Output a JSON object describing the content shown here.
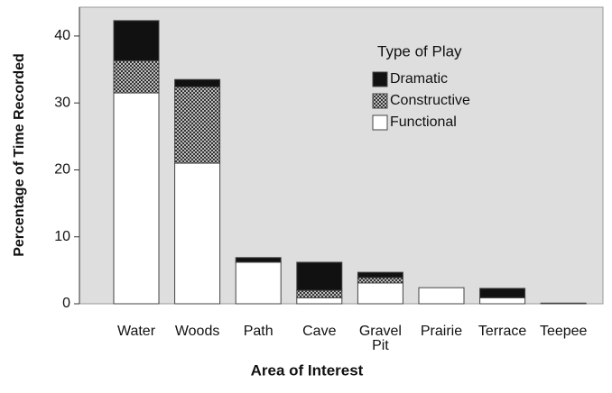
{
  "chart_data": {
    "type": "stacked_bar",
    "xlabel": "Area of Interest",
    "ylabel": "Percentage of Time Recorded",
    "legend_title": "Type of Play",
    "legend_position": "upper right",
    "categories": [
      "Water",
      "Woods",
      "Path",
      "Cave",
      "Gravel Pit",
      "Prairie",
      "Terrace",
      "Teepee"
    ],
    "series": [
      {
        "name": "Functional",
        "color": "#ffffff",
        "values": [
          31.5,
          21.0,
          6.2,
          0.9,
          3.1,
          2.4,
          0.9,
          0.1
        ]
      },
      {
        "name": "Constructive",
        "color": "#4a4a4a",
        "values": [
          4.8,
          11.4,
          0,
          1.1,
          0.8,
          0,
          0,
          0
        ]
      },
      {
        "name": "Dramatic",
        "color": "#111111",
        "values": [
          6.0,
          1.1,
          0.7,
          4.2,
          0.8,
          0,
          1.4,
          0
        ]
      }
    ],
    "ylim": [
      0,
      44.3
    ],
    "yticks": [
      0,
      10,
      20,
      30,
      40
    ]
  }
}
